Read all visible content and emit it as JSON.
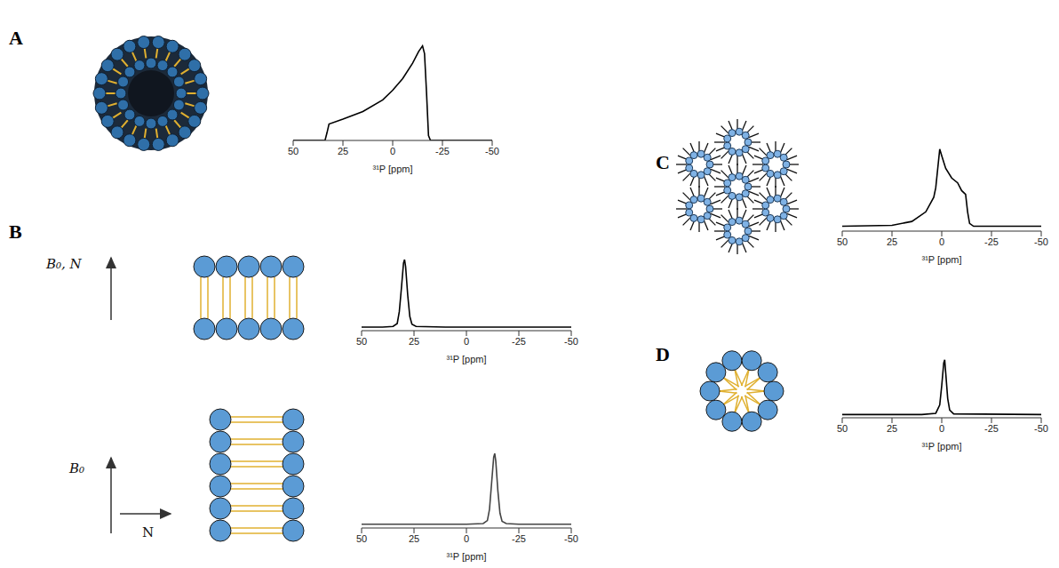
{
  "panel_labels": [
    "A",
    "B",
    "C",
    "D"
  ],
  "diagram_labels": {
    "b_top_field": "B₀, N",
    "b_bottom_field": "B₀",
    "b_bottom_normal": "N"
  },
  "chart_data": [
    {
      "type": "line",
      "x_label": "³¹P [ppm]",
      "x": [
        50,
        40,
        34,
        33,
        32,
        25,
        15,
        5,
        0,
        -5,
        -10,
        -13,
        -15,
        -16,
        -17,
        -18,
        -19,
        -30,
        -50
      ],
      "values": [
        0,
        0,
        0,
        0.08,
        0.17,
        0.22,
        0.3,
        0.42,
        0.52,
        0.64,
        0.8,
        0.92,
        0.98,
        0.9,
        0.5,
        0.05,
        0,
        0,
        0
      ],
      "color": "#000000",
      "xlim": [
        50,
        -50
      ],
      "xticks": [
        50,
        25,
        0,
        -25,
        -50
      ],
      "ylim": [
        0,
        1.05
      ],
      "tick_labels": "x"
    },
    {
      "type": "line",
      "x_label": "³¹P [ppm]",
      "x": [
        50,
        40,
        35,
        33,
        32,
        31,
        30,
        29.5,
        29,
        28,
        27,
        26,
        24,
        10,
        0,
        -25,
        -50
      ],
      "values": [
        0.05,
        0.05,
        0.06,
        0.1,
        0.27,
        0.6,
        0.95,
        1.0,
        0.9,
        0.5,
        0.2,
        0.09,
        0.06,
        0.05,
        0.05,
        0.05,
        0.05
      ],
      "color": "#000000",
      "xlim": [
        50,
        -50
      ],
      "xticks": [
        50,
        25,
        0,
        -25,
        -50
      ],
      "ylim": [
        0,
        1.05
      ],
      "tick_labels": "x"
    },
    {
      "type": "line",
      "x_label": "³¹P [ppm]",
      "x": [
        50,
        25,
        0,
        -8,
        -10,
        -11,
        -12,
        -13,
        -13.5,
        -14,
        -15,
        -16,
        -17,
        -19,
        -25,
        -50
      ],
      "values": [
        0.05,
        0.05,
        0.05,
        0.06,
        0.1,
        0.25,
        0.6,
        0.95,
        1.0,
        0.9,
        0.5,
        0.2,
        0.09,
        0.06,
        0.05,
        0.05
      ],
      "color": "#444444",
      "xlim": [
        50,
        -50
      ],
      "xticks": [
        50,
        25,
        0,
        -25,
        -50
      ],
      "ylim": [
        0,
        1.05
      ],
      "tick_labels": "x"
    },
    {
      "type": "line",
      "x_label": "³¹P [ppm]",
      "x": [
        50,
        25,
        15,
        8,
        4,
        3,
        1,
        0,
        -2,
        -5,
        -8,
        -10,
        -12,
        -13,
        -14,
        -16,
        -50
      ],
      "values": [
        0.05,
        0.06,
        0.1,
        0.2,
        0.35,
        0.45,
        0.85,
        0.78,
        0.65,
        0.55,
        0.5,
        0.42,
        0.38,
        0.2,
        0.08,
        0.05,
        0.05
      ],
      "color": "#000000",
      "xlim": [
        50,
        -50
      ],
      "xticks": [
        50,
        25,
        0,
        -25,
        -50
      ],
      "ylim": [
        0,
        1.05
      ],
      "tick_labels": "x"
    },
    {
      "type": "line",
      "x_label": "³¹P [ppm]",
      "x": [
        50,
        10,
        3,
        1,
        0,
        -1,
        -1.5,
        -2,
        -3,
        -4,
        -6,
        -50
      ],
      "values": [
        0.05,
        0.05,
        0.07,
        0.2,
        0.5,
        0.85,
        0.9,
        0.7,
        0.3,
        0.12,
        0.06,
        0.05
      ],
      "color": "#000000",
      "xlim": [
        50,
        -50
      ],
      "xticks": [
        50,
        25,
        0,
        -25,
        -50
      ],
      "ylim": [
        0,
        1.05
      ],
      "tick_labels": "x"
    }
  ]
}
